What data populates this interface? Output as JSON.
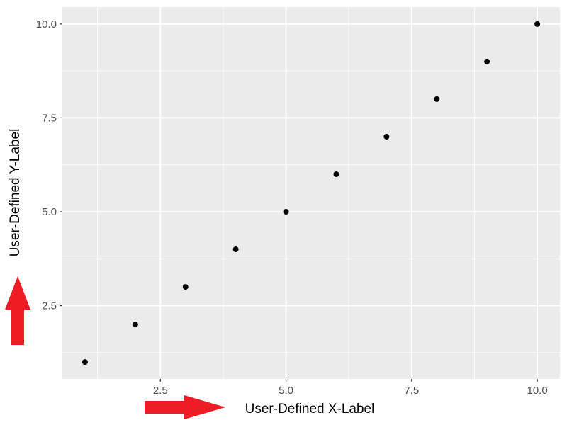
{
  "chart_data": {
    "type": "scatter",
    "title": "",
    "xlabel": "User-Defined X-Label",
    "ylabel": "User-Defined Y-Label",
    "x": [
      1,
      2,
      3,
      4,
      5,
      6,
      7,
      8,
      9,
      10
    ],
    "y": [
      1,
      2,
      3,
      4,
      5,
      6,
      7,
      8,
      9,
      10
    ],
    "xlim": [
      0.55,
      10.45
    ],
    "ylim": [
      0.55,
      10.45
    ],
    "x_ticks": [
      2.5,
      5.0,
      7.5,
      10.0
    ],
    "x_tick_labels": [
      "2.5",
      "5.0",
      "7.5",
      "10.0"
    ],
    "y_ticks": [
      2.5,
      5.0,
      7.5,
      10.0
    ],
    "y_tick_labels": [
      "2.5",
      "5.0",
      "7.5",
      "10.0"
    ],
    "grid": true,
    "legend": "none",
    "annotations": [
      {
        "type": "arrow",
        "direction": "right",
        "points_to": "x-axis label",
        "color": "#ee1c24"
      },
      {
        "type": "arrow",
        "direction": "up",
        "points_to": "y-axis label",
        "color": "#ee1c24"
      }
    ]
  },
  "colors": {
    "panel_background": "#ebebeb",
    "grid_line": "#ffffff",
    "point": "#000000",
    "arrow": "#ee1c24",
    "tick_text": "#4d4d4d"
  }
}
